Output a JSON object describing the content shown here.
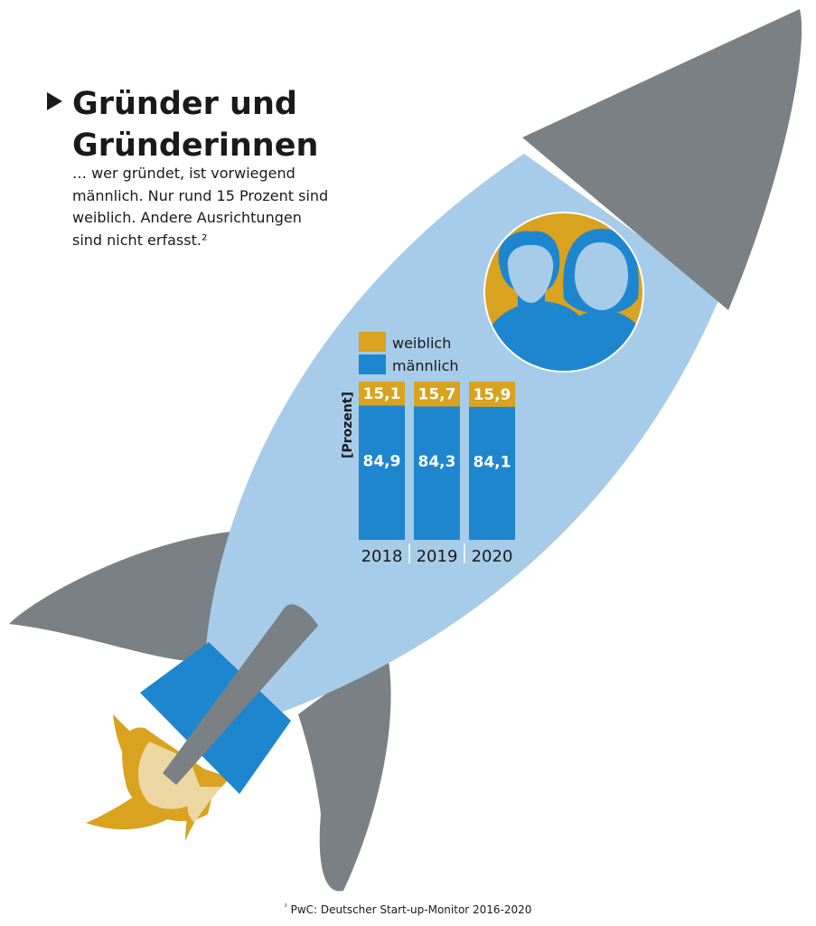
{
  "header": {
    "title_line1": "Gründer und",
    "title_line2": "Gründerinnen",
    "subtitle_lines": [
      "… wer gründet, ist vorwiegend",
      "männlich. Nur rund 15 Prozent sind",
      "weiblich. Andere Ausrichtungen",
      "sind nicht erfasst.²"
    ]
  },
  "footnote": {
    "marker": "²",
    "text": " PwC: Deutscher Start-up-Monitor 2016-2020"
  },
  "colors": {
    "female": "#D9A21F",
    "male": "#1E86CF",
    "rocket_body": "#A6CCE9",
    "rocket_fin": "#7B8084",
    "flame_outer": "#D9A21F",
    "flame_inner": "#ECD6A2"
  },
  "icons": {
    "title_marker": "play-triangle-icon",
    "founders": "founders-silhouette-icon",
    "rocket": "rocket-illustration"
  },
  "chart_data": {
    "type": "bar",
    "stacked": true,
    "categories": [
      "2018",
      "2019",
      "2020"
    ],
    "ylabel": "[Prozent]",
    "ylim": [
      0,
      100
    ],
    "legend_position": "top",
    "series": [
      {
        "name": "weiblich",
        "color": "#D9A21F",
        "values": [
          15.1,
          15.7,
          15.9
        ],
        "labels": [
          "15,1",
          "15,7",
          "15,9"
        ]
      },
      {
        "name": "männlich",
        "color": "#1E86CF",
        "values": [
          84.9,
          84.3,
          84.1
        ],
        "labels": [
          "84,9",
          "84,3",
          "84,1"
        ]
      }
    ]
  }
}
